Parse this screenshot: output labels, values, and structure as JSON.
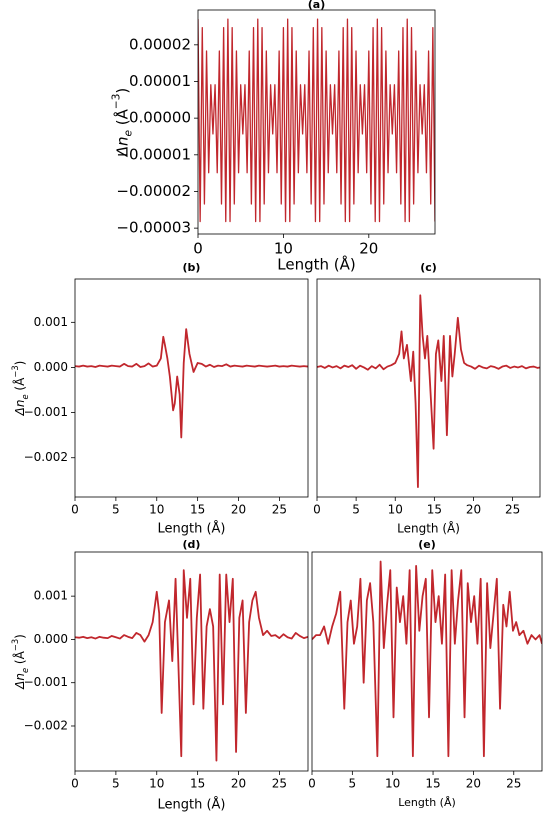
{
  "chart_data": [
    {
      "type": "line",
      "title": "(a)",
      "xlabel": "Length (Å)",
      "ylabel": [
        "Δn",
        "e",
        " (Å",
        "−3",
        ")"
      ],
      "xlim": [
        0,
        27.75
      ],
      "ylim": [
        -3.16e-05,
        2.95e-05
      ],
      "xticks": [
        0,
        10,
        20
      ],
      "yticks": [
        2e-05,
        1e-05,
        {
          "value": 0,
          "label": "0.00000"
        },
        {
          "value": -1e-05,
          "label": "−0.00001"
        },
        {
          "value": -2e-05,
          "label": "−0.00002"
        },
        {
          "value": -3e-05,
          "label": "−0.00003"
        }
      ],
      "x": [
        0,
        0.25,
        0.5,
        0.75,
        1,
        1.25,
        1.5,
        1.75,
        2,
        2.25,
        2.5,
        2.75,
        3,
        3.25,
        3.5,
        3.75,
        4,
        4.25,
        4.5,
        4.75,
        5,
        5.25,
        5.5,
        5.75,
        6,
        6.25,
        6.5,
        6.75,
        7,
        7.25,
        7.5,
        7.75,
        8,
        8.25,
        8.5,
        8.75,
        9,
        9.25,
        9.5,
        9.75,
        10,
        10.25,
        10.5,
        10.75,
        11,
        11.25,
        11.5,
        11.75,
        12,
        12.25,
        12.5,
        12.75,
        13,
        13.25,
        13.5,
        13.75,
        14,
        14.25,
        14.5,
        14.75,
        15,
        15.25,
        15.5,
        15.75,
        16,
        16.25,
        16.5,
        16.75,
        17,
        17.25,
        17.5,
        17.75,
        18,
        18.25,
        18.5,
        18.75,
        19,
        19.25,
        19.5,
        19.75,
        20,
        20.25,
        20.5,
        20.75,
        21,
        21.25,
        21.5,
        21.75,
        22,
        22.25,
        22.5,
        22.75,
        23,
        23.25,
        23.5,
        23.75,
        24,
        24.25,
        24.5,
        24.75,
        25,
        25.25,
        25.5,
        25.75,
        26,
        26.25,
        26.5,
        26.75,
        27,
        27.25,
        27.5,
        27.75
      ],
      "series": [
        {
          "color": "#c1272d",
          "values": [
            2.7e-05,
            -2.82e-05,
            2.47e-05,
            -2.34e-05,
            1.83e-05,
            -1.49e-05,
            9.1e-06,
            -4.3e-06,
            9.1e-06,
            -1.49e-05,
            1.83e-05,
            -2.34e-05,
            2.47e-05,
            -2.82e-05,
            2.7e-05,
            -2.82e-05,
            2.47e-05,
            -2.34e-05,
            1.83e-05,
            -1.49e-05,
            9.1e-06,
            -4.3e-06,
            9.1e-06,
            -1.49e-05,
            1.83e-05,
            -2.34e-05,
            2.47e-05,
            -2.82e-05,
            2.7e-05,
            -2.82e-05,
            2.47e-05,
            -2.34e-05,
            1.83e-05,
            -1.49e-05,
            9.1e-06,
            -4.3e-06,
            9.1e-06,
            -1.49e-05,
            1.83e-05,
            -2.34e-05,
            2.47e-05,
            -2.82e-05,
            2.7e-05,
            -2.82e-05,
            2.47e-05,
            -2.34e-05,
            1.83e-05,
            -1.49e-05,
            9.1e-06,
            -4.3e-06,
            9.1e-06,
            -1.49e-05,
            1.83e-05,
            -2.34e-05,
            2.47e-05,
            -2.82e-05,
            2.7e-05,
            -2.82e-05,
            2.47e-05,
            -2.34e-05,
            1.83e-05,
            -1.49e-05,
            9.1e-06,
            -4.3e-06,
            9.1e-06,
            -1.49e-05,
            1.83e-05,
            -2.34e-05,
            2.47e-05,
            -2.82e-05,
            2.7e-05,
            -2.82e-05,
            2.47e-05,
            -2.34e-05,
            1.83e-05,
            -1.49e-05,
            9.1e-06,
            -4.3e-06,
            9.1e-06,
            -1.49e-05,
            1.83e-05,
            -2.34e-05,
            2.47e-05,
            -2.82e-05,
            2.7e-05,
            -2.82e-05,
            2.47e-05,
            -2.34e-05,
            1.83e-05,
            -1.49e-05,
            9.1e-06,
            -4.3e-06,
            9.1e-06,
            -1.49e-05,
            1.83e-05,
            -2.34e-05,
            2.47e-05,
            -2.82e-05,
            2.7e-05,
            -2.82e-05,
            2.47e-05,
            -2.34e-05,
            1.83e-05,
            -1.49e-05,
            9.1e-06,
            -4.3e-06,
            9.1e-06,
            -1.49e-05,
            1.83e-05,
            -2.34e-05,
            2.47e-05,
            -2.82e-05
          ]
        }
      ]
    },
    {
      "type": "line",
      "title": "(b)",
      "xlabel": "Length (Å)",
      "ylabel": [
        "Δn",
        "e",
        " (Å",
        "−3",
        ")"
      ],
      "xlim": [
        0,
        28.5
      ],
      "ylim": [
        -0.00287,
        0.00196
      ],
      "xticks": [
        0,
        5,
        10,
        15,
        20,
        25
      ],
      "yticks": [
        0.001,
        {
          "value": 0,
          "label": "0.000"
        },
        {
          "value": -0.001,
          "label": "−0.001"
        },
        {
          "value": -0.002,
          "label": "−0.002"
        }
      ],
      "x": [
        0,
        0.5,
        1,
        1.5,
        2,
        2.5,
        3,
        3.5,
        4,
        4.5,
        5,
        5.5,
        6,
        6.5,
        7,
        7.5,
        8,
        8.5,
        9,
        9.5,
        10,
        10.5,
        10.8,
        11,
        11.3,
        11.6,
        12,
        12.2,
        12.5,
        12.8,
        13,
        13.3,
        13.6,
        14,
        14.5,
        15,
        15.5,
        16,
        16.5,
        17,
        17.5,
        18,
        18.5,
        19,
        19.5,
        20,
        20.5,
        21,
        21.5,
        22,
        22.5,
        23,
        23.5,
        24,
        24.5,
        25,
        25.5,
        26,
        26.5,
        27,
        27.5,
        28,
        28.5
      ],
      "series": [
        {
          "color": "#c1272d",
          "values": [
            3e-05,
            2e-05,
            4e-05,
            2e-05,
            3e-05,
            1e-05,
            4e-05,
            3e-05,
            2e-05,
            4e-05,
            3e-05,
            2e-05,
            8e-05,
            3e-05,
            2e-05,
            8e-05,
            1e-05,
            3e-05,
            9e-05,
            2e-05,
            4e-05,
            0.0002,
            0.00068,
            0.0005,
            0.0002,
            -0.0002,
            -0.00095,
            -0.0008,
            -0.0002,
            -0.0006,
            -0.00155,
            0.0001,
            0.00085,
            0.0003,
            -0.0001,
            0.0001,
            8e-05,
            2e-05,
            6e-05,
            1e-05,
            4e-05,
            3e-05,
            7e-05,
            2e-05,
            4e-05,
            3e-05,
            2e-05,
            4e-05,
            3e-05,
            2e-05,
            4e-05,
            3e-05,
            2e-05,
            3e-05,
            4e-05,
            2e-05,
            3e-05,
            2e-05,
            4e-05,
            3e-05,
            2e-05,
            3e-05,
            2e-05
          ]
        }
      ]
    },
    {
      "type": "line",
      "title": "(c)",
      "xlabel": "Length (Å)",
      "xlim": [
        0,
        28.5
      ],
      "ylim": [
        -0.00287,
        0.00196
      ],
      "xticks": [
        0,
        5,
        10,
        15,
        20,
        25
      ],
      "x": [
        0,
        0.5,
        1,
        1.5,
        2,
        2.5,
        3,
        3.5,
        4,
        4.5,
        5,
        5.5,
        6,
        6.5,
        7,
        7.5,
        8,
        8.5,
        9,
        9.5,
        10,
        10.5,
        10.8,
        11.1,
        11.5,
        12,
        12.3,
        12.6,
        12.9,
        13.2,
        13.5,
        13.8,
        14.1,
        14.4,
        14.9,
        15.2,
        15.5,
        15.9,
        16.2,
        16.6,
        17,
        17.3,
        17.6,
        18,
        18.4,
        18.8,
        19.2,
        19.7,
        20.2,
        20.7,
        21.2,
        21.7,
        22.2,
        22.7,
        23.2,
        23.7,
        24.2,
        24.7,
        25.2,
        25.7,
        26.2,
        26.7,
        27.2,
        27.7,
        28.2,
        28.5
      ],
      "series": [
        {
          "color": "#c1272d",
          "values": [
            1e-05,
            3e-05,
            -1e-05,
            4e-05,
            0,
            3e-05,
            -2e-05,
            4e-05,
            1e-05,
            5e-05,
            -3e-05,
            4e-05,
            0,
            -5e-05,
            3e-05,
            -2e-05,
            6e-05,
            -4e-05,
            2e-05,
            5e-05,
            0.0001,
            0.0003,
            0.0008,
            0.0002,
            0.0005,
            -0.0003,
            0.00035,
            -0.0008,
            -0.00265,
            0.0016,
            0.0007,
            0.0002,
            0.0007,
            -0.0002,
            -0.0018,
            0.0003,
            0.0006,
            -0.0003,
            0.0007,
            -0.0015,
            0.0007,
            -0.0002,
            0.0003,
            0.0011,
            0.0004,
            0.0001,
            5e-05,
            2e-05,
            -3e-05,
            4e-05,
            0,
            -2e-05,
            3e-05,
            1e-05,
            -3e-05,
            2e-05,
            4e-05,
            -1e-05,
            2e-05,
            0,
            3e-05,
            -2e-05,
            1e-05,
            2e-05,
            -1e-05,
            0
          ]
        }
      ]
    },
    {
      "type": "line",
      "title": "(d)",
      "xlabel": "Length (Å)",
      "ylabel": [
        "Δn",
        "e",
        " (Å",
        "−3",
        ")"
      ],
      "xlim": [
        0,
        28.5
      ],
      "ylim": [
        -0.00304,
        0.00202
      ],
      "xticks": [
        0,
        5,
        10,
        15,
        20,
        25
      ],
      "yticks": [
        0.001,
        {
          "value": 0,
          "label": "0.000"
        },
        {
          "value": -0.001,
          "label": "−0.001"
        },
        {
          "value": -0.002,
          "label": "−0.002"
        }
      ],
      "x": [
        0,
        0.5,
        1,
        1.5,
        2,
        2.5,
        3,
        3.5,
        4,
        4.5,
        5,
        5.5,
        6,
        6.5,
        7,
        7.5,
        8,
        8.5,
        9,
        9.5,
        10,
        10.3,
        10.6,
        11,
        11.5,
        11.9,
        12.3,
        12.6,
        13,
        13.3,
        13.7,
        14.1,
        14.5,
        14.9,
        15.3,
        15.7,
        16.1,
        16.5,
        16.9,
        17.3,
        17.7,
        18.1,
        18.5,
        18.9,
        19.3,
        19.7,
        20.1,
        20.5,
        20.9,
        21.3,
        21.7,
        22.1,
        22.5,
        23,
        23.5,
        24,
        24.5,
        25,
        25.5,
        26,
        26.5,
        27,
        27.5,
        28,
        28.5
      ],
      "series": [
        {
          "color": "#c1272d",
          "values": [
            5e-05,
            4e-05,
            6e-05,
            3e-05,
            5e-05,
            2e-05,
            6e-05,
            4e-05,
            3e-05,
            8e-05,
            5e-05,
            2e-05,
            0.0001,
            6e-05,
            3e-05,
            0.00015,
            0.0001,
            -5e-05,
            0.0001,
            0.0004,
            0.0011,
            0.0006,
            -0.0017,
            0.0004,
            0.0009,
            -0.0005,
            0.0014,
            -0.0003,
            -0.0027,
            0.0016,
            0.0005,
            0.0014,
            -0.0015,
            0.0005,
            0.0015,
            -0.0016,
            0.0003,
            0.0007,
            0.0003,
            -0.0028,
            0.0015,
            -0.0015,
            0.0015,
            0.0004,
            0.0014,
            -0.0026,
            0.0005,
            0.0009,
            -0.0017,
            0.0004,
            0.0009,
            0.0011,
            0.0005,
            0.0001,
            0.0002,
            8e-05,
            0.0001,
            3e-05,
            0.00012,
            5e-05,
            2e-05,
            0.00015,
            8e-05,
            3e-05,
            6e-05
          ]
        }
      ]
    },
    {
      "type": "line",
      "title": "(e)",
      "xlabel": "Length (Å)",
      "xlim": [
        0,
        28.5
      ],
      "ylim": [
        -0.00304,
        0.00202
      ],
      "xticks": [
        0,
        5,
        10,
        15,
        20,
        25
      ],
      "x": [
        0,
        0.5,
        1,
        1.5,
        2,
        2.5,
        3,
        3.5,
        4,
        4.4,
        4.8,
        5.2,
        5.6,
        6,
        6.4,
        6.8,
        7.2,
        7.6,
        8.1,
        8.5,
        8.9,
        9.3,
        9.7,
        10.1,
        10.5,
        10.9,
        11.3,
        11.7,
        12.1,
        12.5,
        12.9,
        13.3,
        13.7,
        14.1,
        14.5,
        14.9,
        15.3,
        15.7,
        16.1,
        16.5,
        16.9,
        17.3,
        17.7,
        18.1,
        18.5,
        18.9,
        19.3,
        19.7,
        20.1,
        20.5,
        20.9,
        21.3,
        21.7,
        22.1,
        22.5,
        22.9,
        23.3,
        23.7,
        24.1,
        24.5,
        24.9,
        25.3,
        25.7,
        26.2,
        26.7,
        27.2,
        27.7,
        28.2,
        28.5
      ],
      "series": [
        {
          "color": "#c1272d",
          "values": [
            0,
            0.0001,
            0.0001,
            0.0003,
            -0.0001,
            0.0003,
            0.0006,
            0.0011,
            -0.0016,
            0.0004,
            0.0009,
            -0.0001,
            0.0003,
            0.0014,
            -0.001,
            0.0009,
            0.0013,
            0.0004,
            -0.0027,
            0.0018,
            -0.0002,
            0.0008,
            0.0016,
            -0.0018,
            0.0012,
            0.0004,
            0.001,
            -0.0001,
            0.0016,
            -0.0027,
            0.0017,
            0.0002,
            0.001,
            0.0014,
            -0.0018,
            0.0016,
            0.0004,
            0.001,
            -0.0001,
            0.0015,
            -0.0027,
            0.0016,
            -0.0001,
            0.0009,
            0.0016,
            -0.0018,
            0.0013,
            0.0004,
            0.001,
            -0.0001,
            0.0014,
            -0.0027,
            0.0013,
            -0.0002,
            0.0006,
            0.0014,
            -0.0016,
            0.0008,
            0.0003,
            0.0011,
            0.0002,
            0.0004,
            0.0001,
            0.0002,
            -0.0001,
            0.0001,
            0,
            0.0001,
            -0.0001
          ]
        }
      ]
    }
  ]
}
